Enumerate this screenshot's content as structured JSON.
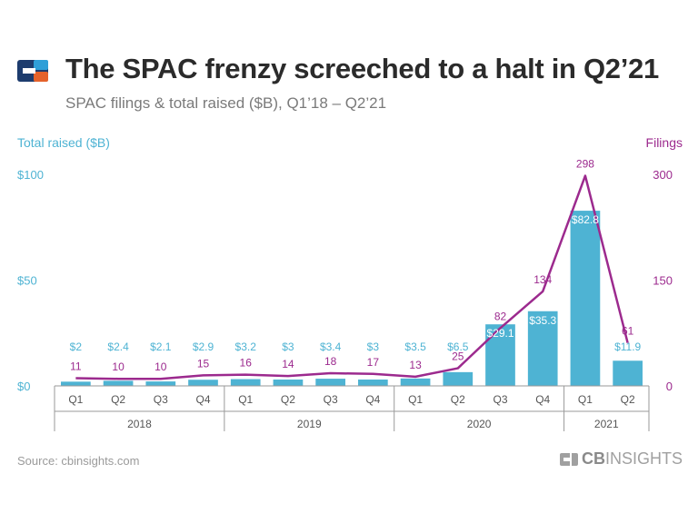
{
  "header": {
    "title": "The SPAC frenzy screeched to a halt in Q2’21",
    "subtitle": "SPAC filings & total raised ($B), Q1’18 – Q2’21"
  },
  "footer": {
    "source": "Source: cbinsights.com",
    "brand_bold": "CB",
    "brand_light": "INSIGHTS"
  },
  "colors": {
    "bar": "#4eb3d3",
    "line": "#9c2a8e",
    "title": "#2b2b2b"
  },
  "chart_data": {
    "type": "bar",
    "combo": "bar+line",
    "left_axis_title": "Total raised ($B)",
    "right_axis_title": "Filings",
    "left_ticks": [
      "$0",
      "$50",
      "$100"
    ],
    "left_tick_values": [
      0,
      50,
      100
    ],
    "right_ticks": [
      "0",
      "150",
      "300"
    ],
    "right_tick_values": [
      0,
      150,
      300
    ],
    "ylim_left": [
      0,
      100
    ],
    "ylim_right": [
      0,
      300
    ],
    "categories": [
      "Q1",
      "Q2",
      "Q3",
      "Q4",
      "Q1",
      "Q2",
      "Q3",
      "Q4",
      "Q1",
      "Q2",
      "Q3",
      "Q4",
      "Q1",
      "Q2"
    ],
    "years": [
      {
        "label": "2018",
        "count": 4
      },
      {
        "label": "2019",
        "count": 4
      },
      {
        "label": "2020",
        "count": 4
      },
      {
        "label": "2021",
        "count": 2
      }
    ],
    "series": [
      {
        "name": "Total raised ($B)",
        "kind": "bar",
        "axis": "left",
        "values": [
          2,
          2.4,
          2.1,
          2.9,
          3.2,
          3,
          3.4,
          3,
          3.5,
          6.5,
          29.1,
          35.3,
          82.8,
          11.9
        ],
        "labels": [
          "$2",
          "$2.4",
          "$2.1",
          "$2.9",
          "$3.2",
          "$3",
          "$3.4",
          "$3",
          "$3.5",
          "$6.5",
          "$29.1",
          "$35.3",
          "$82.8",
          "$11.9"
        ]
      },
      {
        "name": "Filings",
        "kind": "line",
        "axis": "right",
        "values": [
          11,
          10,
          10,
          15,
          16,
          14,
          18,
          17,
          13,
          25,
          82,
          134,
          298,
          61
        ],
        "labels": [
          "11",
          "10",
          "10",
          "15",
          "16",
          "14",
          "18",
          "17",
          "13",
          "25",
          "82",
          "134",
          "298",
          "61"
        ]
      }
    ],
    "grid": false,
    "legend": "none"
  }
}
